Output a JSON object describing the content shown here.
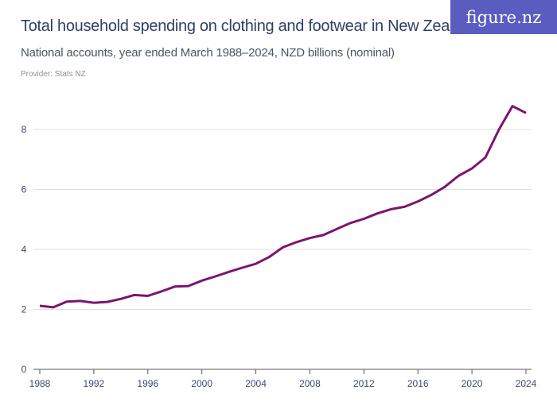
{
  "header": {
    "title": "Total household spending on clothing and footwear in New Zealand",
    "subtitle": "National accounts, year ended March 1988–2024, NZD billions (nominal)",
    "provider": "Provider: Stats NZ",
    "logo": "figure.nz"
  },
  "colors": {
    "line": "#7b1570",
    "grid": "#dddddd",
    "axis": "#555555",
    "logo_bg": "#5a5dbf"
  },
  "chart_data": {
    "type": "line",
    "title": "Total household spending on clothing and footwear in New Zealand",
    "xlabel": "",
    "ylabel": "",
    "xlim": [
      1988,
      2024
    ],
    "ylim": [
      0,
      9
    ],
    "grid": true,
    "x_ticks": [
      1988,
      1992,
      1996,
      2000,
      2004,
      2008,
      2012,
      2016,
      2020,
      2024
    ],
    "y_ticks": [
      0,
      2,
      4,
      6,
      8
    ],
    "x": [
      1988,
      1989,
      1990,
      1991,
      1992,
      1993,
      1994,
      1995,
      1996,
      1997,
      1998,
      1999,
      2000,
      2001,
      2002,
      2003,
      2004,
      2005,
      2006,
      2007,
      2008,
      2009,
      2010,
      2011,
      2012,
      2013,
      2014,
      2015,
      2016,
      2017,
      2018,
      2019,
      2020,
      2021,
      2022,
      2023,
      2024
    ],
    "values": [
      2.12,
      2.07,
      2.26,
      2.28,
      2.22,
      2.25,
      2.35,
      2.48,
      2.45,
      2.6,
      2.76,
      2.78,
      2.96,
      3.1,
      3.25,
      3.39,
      3.52,
      3.75,
      4.07,
      4.24,
      4.38,
      4.48,
      4.68,
      4.88,
      5.02,
      5.2,
      5.34,
      5.42,
      5.6,
      5.82,
      6.09,
      6.45,
      6.7,
      7.07,
      8.0,
      8.78,
      8.55
    ]
  }
}
